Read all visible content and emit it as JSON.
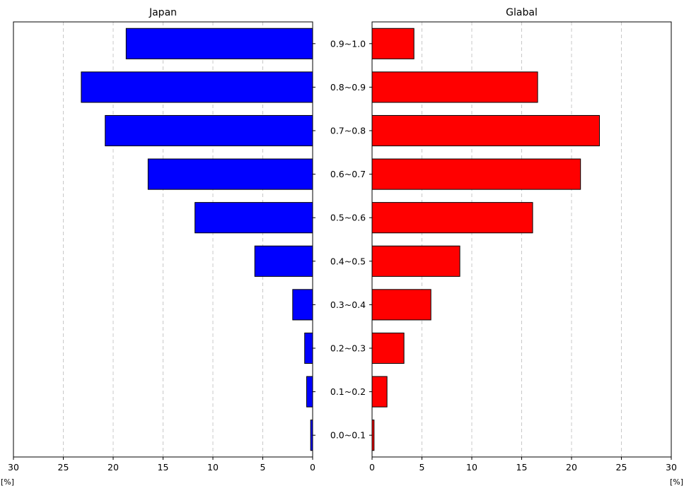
{
  "chart_data": {
    "type": "bar",
    "orientation": "horizontal",
    "categories": [
      "0.0~0.1",
      "0.1~0.2",
      "0.2~0.3",
      "0.3~0.4",
      "0.4~0.5",
      "0.5~0.6",
      "0.6~0.7",
      "0.7~0.8",
      "0.8~0.9",
      "0.9~1.0"
    ],
    "panels": [
      {
        "title": "Japan",
        "color": "#0000ff",
        "direction": "reversed",
        "xlim": [
          0,
          30
        ],
        "xticks": [
          30,
          25,
          20,
          15,
          10,
          5,
          0
        ],
        "xunit": "[%]",
        "values": [
          0.2,
          0.6,
          0.8,
          2.0,
          5.8,
          11.8,
          16.5,
          20.8,
          23.2,
          18.7
        ]
      },
      {
        "title": "Glabal",
        "color": "#ff0000",
        "direction": "normal",
        "xlim": [
          0,
          30
        ],
        "xticks": [
          0,
          5,
          10,
          15,
          20,
          25,
          30
        ],
        "xunit": "[%]",
        "values": [
          0.2,
          1.5,
          3.2,
          5.9,
          8.8,
          16.1,
          20.9,
          22.8,
          16.6,
          4.2
        ]
      }
    ],
    "grid": "x-dashed",
    "legend": "none"
  }
}
